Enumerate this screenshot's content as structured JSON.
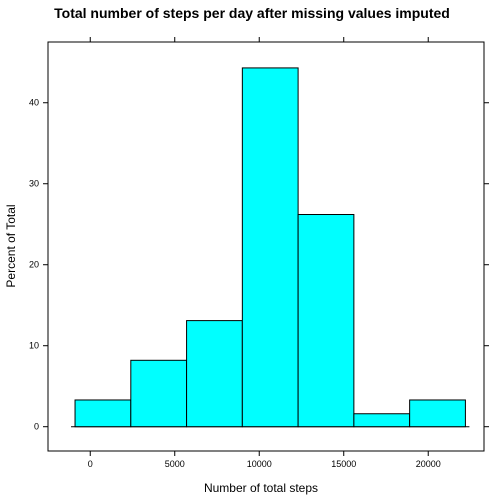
{
  "chart_data": {
    "type": "bar",
    "title": "Total number of steps per day after missing values imputed",
    "xlabel": "Number of total steps",
    "ylabel": "Percent of Total",
    "xlim": [
      -2500,
      23300
    ],
    "ylim": [
      -3,
      47.5
    ],
    "bin_edges": [
      -900,
      2400,
      5700,
      9000,
      12300,
      15600,
      18900,
      22200
    ],
    "values": [
      3.3,
      8.2,
      13.1,
      44.3,
      26.2,
      1.6,
      3.3
    ],
    "x_ticks": [
      0,
      5000,
      10000,
      15000,
      20000
    ],
    "x_tick_labels": [
      "0",
      "5000",
      "10000",
      "15000",
      "20000"
    ],
    "y_ticks": [
      0,
      10,
      20,
      30,
      40
    ],
    "y_tick_labels": [
      "0",
      "10",
      "20",
      "30",
      "40"
    ],
    "bar_color": "#00ffff",
    "grid": false
  }
}
